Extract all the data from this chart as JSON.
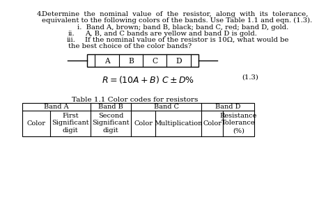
{
  "background_color": "#ffffff",
  "question_number": "4.",
  "q_line1": "Determine  the  nominal  value  of  the  resistor,  along  with  its  tolerance,",
  "q_line2": "equivalent to the following colors of the bands. Use Table 1.1 and eqn. (1.3).",
  "sub_i": "i.  Band A, brown; band B, black; band C, red; band D, gold.",
  "sub_ii_label": "ii.",
  "sub_ii_text": "A, B, and C bands are yellow and band D is gold.",
  "sub_iii_label": "iii.",
  "sub_iii_text1": "If the nominal value of the resistor is 10Ω, what would be",
  "sub_iii_text2": "the best choice of the color bands?",
  "resistor_labels": [
    "A",
    "B",
    "C",
    "D"
  ],
  "formula": "$R = (10A+B)\\ C \\pm D\\%$",
  "formula_number": "(1.3)",
  "table_title": "Table 1.1 Color codes for resistors",
  "table_headers": [
    "Band A",
    "Band B",
    "Band C",
    "Band D"
  ],
  "font_size_main": 7.2,
  "font_size_table": 7.0
}
